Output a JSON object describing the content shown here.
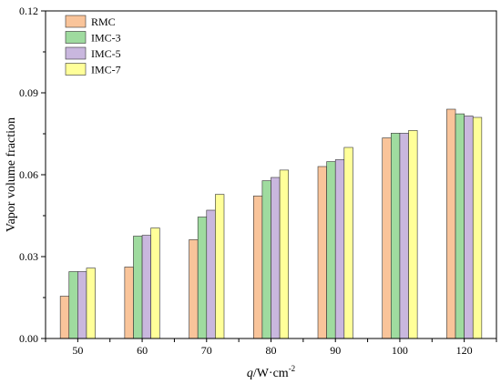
{
  "chart_data": {
    "type": "bar",
    "title": "",
    "ylabel": "Vapor volume fraction",
    "xlabel": {
      "italic": "q",
      "rest": "/W·cm",
      "sup": "-2"
    },
    "categories": [
      "50",
      "60",
      "70",
      "80",
      "90",
      "100",
      "120"
    ],
    "ylim": [
      0,
      0.12
    ],
    "yticks": [
      "0.00",
      "0.03",
      "0.06",
      "0.09",
      "0.12"
    ],
    "ytick_values": [
      0,
      0.03,
      0.06,
      0.09,
      0.12
    ],
    "legend_position": "top-left",
    "grid": false,
    "series": [
      {
        "name": "RMC",
        "color": "#F9C49A",
        "values": [
          0.0155,
          0.0262,
          0.0362,
          0.0522,
          0.063,
          0.0735,
          0.084
        ]
      },
      {
        "name": "IMC-3",
        "color": "#9FDB9F",
        "values": [
          0.0245,
          0.0375,
          0.0445,
          0.0578,
          0.0648,
          0.0752,
          0.0823
        ]
      },
      {
        "name": "IMC-5",
        "color": "#C9B7DE",
        "values": [
          0.0245,
          0.0378,
          0.047,
          0.059,
          0.0655,
          0.0752,
          0.0815
        ]
      },
      {
        "name": "IMC-7",
        "color": "#FFFF99",
        "values": [
          0.0258,
          0.0405,
          0.0528,
          0.0617,
          0.07,
          0.0762,
          0.081
        ]
      }
    ]
  }
}
